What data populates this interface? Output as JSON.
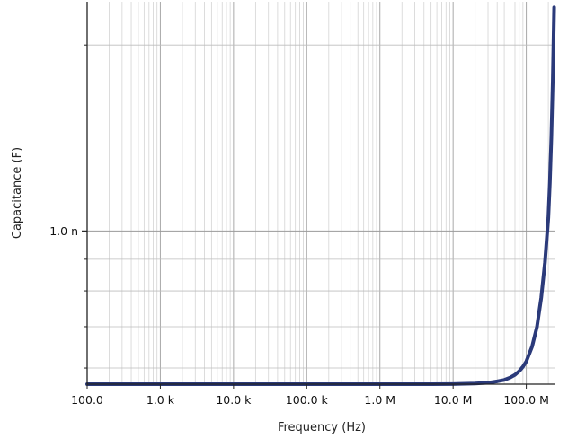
{
  "chart_data": {
    "type": "line",
    "title": "",
    "xlabel": "Frequency (Hz)",
    "ylabel": "Capacitance (F)",
    "x_scale": "log",
    "y_scale": "log",
    "xlim": [
      100,
      250000000
    ],
    "ylim": [
      5.65e-10,
      2.35e-09
    ],
    "x_ticks": [
      {
        "value": 100,
        "label": "100.0"
      },
      {
        "value": 1000,
        "label": "1.0 k"
      },
      {
        "value": 10000,
        "label": "10.0 k"
      },
      {
        "value": 100000,
        "label": "100.0 k"
      },
      {
        "value": 1000000,
        "label": "1.0 M"
      },
      {
        "value": 10000000,
        "label": "10.0 M"
      },
      {
        "value": 100000000,
        "label": "100.0 M"
      }
    ],
    "y_ticks": [
      {
        "value": 1e-09,
        "label": "1.0 n"
      }
    ],
    "y_minor_ticks": [
      6e-10,
      7e-10,
      8e-10,
      9e-10,
      2e-09
    ],
    "grid": true,
    "legend": "none",
    "series": [
      {
        "color": "#2b3a7a",
        "x": [
          100,
          1000,
          10000,
          100000,
          1000000,
          5000000,
          10000000,
          20000000,
          30000000,
          40000000,
          50000000,
          60000000,
          70000000,
          80000000,
          90000000,
          100000000,
          120000000,
          140000000,
          160000000,
          180000000,
          200000000,
          210000000,
          220000000,
          230000000,
          240000000
        ],
        "y": [
          5.65e-10,
          5.65e-10,
          5.65e-10,
          5.65e-10,
          5.65e-10,
          5.651e-10,
          5.653e-10,
          5.665e-10,
          5.68e-10,
          5.71e-10,
          5.74e-10,
          5.79e-10,
          5.85e-10,
          5.93e-10,
          6.03e-10,
          6.15e-10,
          6.5e-10,
          7e-10,
          7.8e-10,
          8.9e-10,
          1.05e-09,
          1.2e-09,
          1.42e-09,
          1.75e-09,
          2.3e-09
        ]
      }
    ]
  }
}
